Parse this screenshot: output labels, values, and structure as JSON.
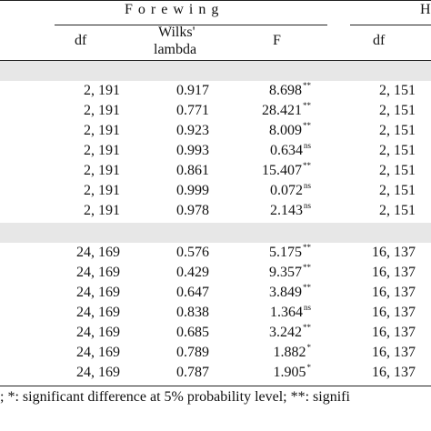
{
  "header": {
    "group_title": "F o r e w i n g",
    "group_title_right": "H",
    "col_df": "df",
    "col_wilks_line1": "Wilks'",
    "col_wilks_line2": "lambda",
    "col_f": "F",
    "col_df2": "df"
  },
  "section1": [
    {
      "df": "2, 191",
      "wl": "0.917",
      "f": "8.698",
      "sig": "**",
      "df2": "2, 151"
    },
    {
      "df": "2, 191",
      "wl": "0.771",
      "f": "28.421",
      "sig": "**",
      "df2": "2, 151"
    },
    {
      "df": "2, 191",
      "wl": "0.923",
      "f": "8.009",
      "sig": "**",
      "df2": "2, 151"
    },
    {
      "df": "2, 191",
      "wl": "0.993",
      "f": "0.634",
      "sig": "ns",
      "df2": "2, 151"
    },
    {
      "df": "2, 191",
      "wl": "0.861",
      "f": "15.407",
      "sig": "**",
      "df2": "2, 151"
    },
    {
      "df": "2, 191",
      "wl": "0.999",
      "f": "0.072",
      "sig": "ns",
      "df2": "2, 151"
    },
    {
      "df": "2, 191",
      "wl": "0.978",
      "f": "2.143",
      "sig": "ns",
      "df2": "2, 151"
    }
  ],
  "section2": [
    {
      "df": "24, 169",
      "wl": "0.576",
      "f": "5.175",
      "sig": "**",
      "df2": "16, 137"
    },
    {
      "df": "24, 169",
      "wl": "0.429",
      "f": "9.357",
      "sig": "**",
      "df2": "16, 137"
    },
    {
      "df": "24, 169",
      "wl": "0.647",
      "f": "3.849",
      "sig": "**",
      "df2": "16, 137"
    },
    {
      "df": "24, 169",
      "wl": "0.838",
      "f": "1.364",
      "sig": "ns",
      "df2": "16, 137"
    },
    {
      "df": "24, 169",
      "wl": "0.685",
      "f": "3.242",
      "sig": "**",
      "df2": "16, 137"
    },
    {
      "df": "24, 169",
      "wl": "0.789",
      "f": "1.882",
      "sig": "*",
      "df2": "16, 137"
    },
    {
      "df": "24, 169",
      "wl": "0.787",
      "f": "1.905",
      "sig": "*",
      "df2": "16, 137"
    }
  ],
  "footnote": "; *: significant difference at 5% probability level; **: signifi"
}
